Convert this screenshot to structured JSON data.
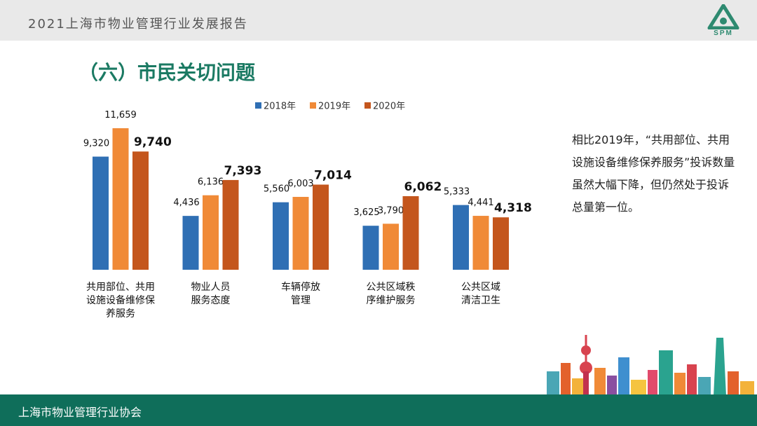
{
  "header": {
    "report_title": "2021上海市物业管理行业发展报告",
    "logo_text": "SPM"
  },
  "section_title": "（六）市民关切问题",
  "chart_data": {
    "type": "bar",
    "categories": [
      "共用部位、共用设施设备维修保养服务",
      "物业人员服务态度",
      "车辆停放管理",
      "公共区域秩序维护服务",
      "公共区域清洁卫生"
    ],
    "category_lines": [
      [
        "共用部位、共用",
        "设施设备维修保",
        "养服务"
      ],
      [
        "物业人员",
        "服务态度"
      ],
      [
        "车辆停放",
        "管理"
      ],
      [
        "公共区域秩",
        "序维护服务"
      ],
      [
        "公共区域",
        "清洁卫生"
      ]
    ],
    "series": [
      {
        "name": "2018年",
        "values": [
          9320,
          4436,
          5560,
          3625,
          5333
        ],
        "labels": [
          "9,320",
          "4,436",
          "5,560",
          "3,625",
          "5,333"
        ]
      },
      {
        "name": "2019年",
        "values": [
          11659,
          6136,
          6003,
          3790,
          4441
        ],
        "labels": [
          "11,659",
          "6,136",
          "6,003",
          "3,790",
          "4,441"
        ]
      },
      {
        "name": "2020年",
        "values": [
          9740,
          7393,
          7014,
          6062,
          4318
        ],
        "labels": [
          "9,740",
          "7,393",
          "7,014",
          "6,062",
          "4,318"
        ]
      }
    ],
    "colors": [
      "#2f6fb4",
      "#f08a37",
      "#c4561d"
    ],
    "ylim": [
      0,
      11659
    ],
    "legend": "top",
    "grid": false
  },
  "description": "相比2019年，“共用部位、共用设施设备维修保养服务”投诉数量虽然大幅下降，但仍然处于投诉总量第一位。",
  "footer": {
    "org": "上海市物业管理行业协会"
  }
}
